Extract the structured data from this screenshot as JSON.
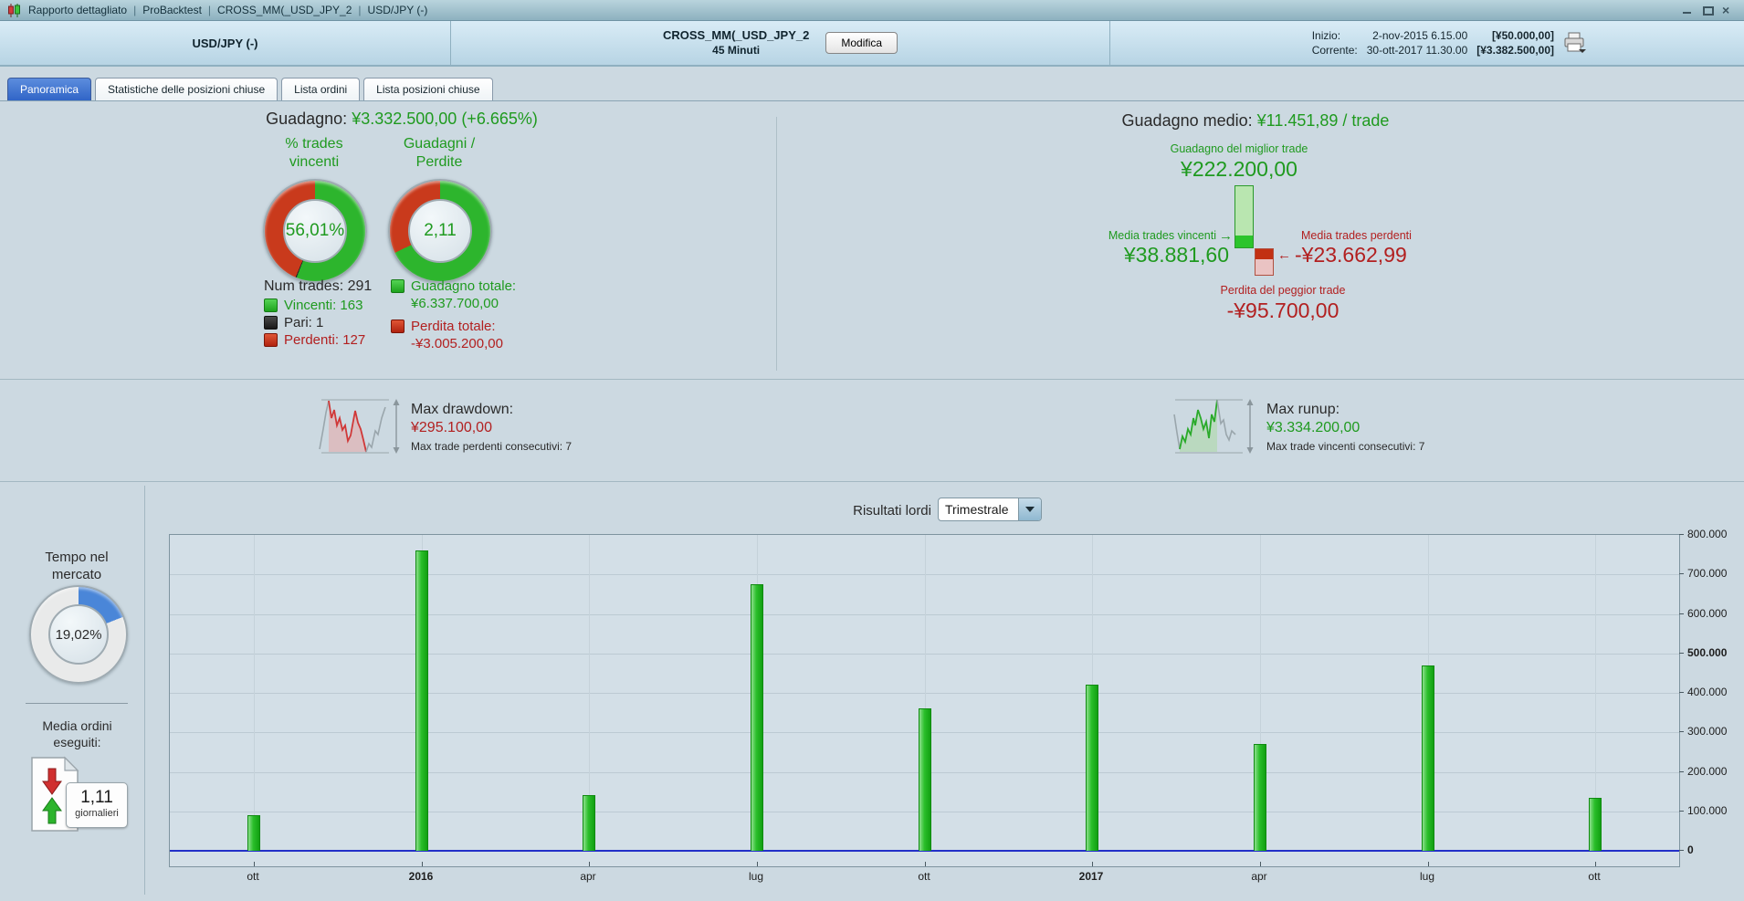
{
  "titlebar": {
    "separator": "|",
    "parts": [
      "Rapporto dettagliato",
      "ProBacktest",
      "CROSS_MM(_USD_JPY_2",
      "USD/JPY (-)"
    ]
  },
  "header": {
    "instrument": "USD/JPY (-)",
    "system_name": "CROSS_MM(_USD_JPY_2",
    "timeframe": "45 Minuti",
    "modify_button": "Modifica",
    "start_label": "Inizio:",
    "start_date": "2-nov-2015 6.15.00",
    "start_value": "[¥50.000,00]",
    "current_label": "Corrente:",
    "current_date": "30-ott-2017 11.30.00",
    "current_value": "[¥3.382.500,00]"
  },
  "tabs": [
    {
      "label": "Panoramica",
      "active": true
    },
    {
      "label": "Statistiche delle posizioni chiuse",
      "active": false
    },
    {
      "label": "Lista ordini",
      "active": false
    },
    {
      "label": "Lista posizioni chiuse",
      "active": false
    }
  ],
  "overview": {
    "gain_label": "Guadagno:",
    "gain_value": "¥3.332.500,00 (+6.665%)",
    "win_donut": {
      "title_line1": "% trades",
      "title_line2": "vincenti",
      "center": "56,01%",
      "segments": [
        {
          "color": "#2db52d",
          "pct": 56.01
        },
        {
          "color": "#262626",
          "pct": 0.34
        },
        {
          "color": "#c93a1c",
          "pct": 43.65
        }
      ]
    },
    "gl_donut": {
      "title_line1": "Guadagni /",
      "title_line2": "Perdite",
      "center": "2,11",
      "segments": [
        {
          "color": "#2db52d",
          "pct": 67.83
        },
        {
          "color": "#c93a1c",
          "pct": 32.17
        }
      ]
    },
    "num_trades": "Num trades: 291",
    "legend": {
      "win": "Vincenti: 163",
      "even": "Pari: 1",
      "loss": "Perdenti: 127"
    },
    "total_gain_label": "Guadagno totale:",
    "total_gain_value": "¥6.337.700,00",
    "total_loss_label": "Perdita totale:",
    "total_loss_value": "-¥3.005.200,00"
  },
  "average": {
    "heading_label": "Guadagno medio:",
    "heading_value": "¥11.451,89 / trade",
    "best_label": "Guadagno del miglior trade",
    "best_value": "¥222.200,00",
    "avg_win_label": "Media trades vincenti",
    "avg_win_value": "¥38.881,60",
    "avg_win_arrow": "→",
    "avg_loss_label": "Media trades perdenti",
    "avg_loss_value": "-¥23.662,99",
    "avg_loss_arrow": "←",
    "worst_label": "Perdita del peggior trade",
    "worst_value": "-¥95.700,00"
  },
  "drawdown": {
    "label": "Max drawdown:",
    "value": "¥295.100,00",
    "note": "Max trade perdenti consecutivi: 7"
  },
  "runup": {
    "label": "Max runup:",
    "value": "¥3.334.200,00",
    "note": "Max trade vincenti consecutivi: 7"
  },
  "bottom": {
    "results_label": "Risultati lordi",
    "period_value": "Trimestrale",
    "time_title_line1": "Tempo nel",
    "time_title_line2": "mercato",
    "time_donut": {
      "center": "19,02%",
      "segments": [
        {
          "color": "#4a86d8",
          "pct": 19.02
        },
        {
          "color": "#e9eaea",
          "pct": 80.98
        }
      ]
    },
    "orders_label_line1": "Media ordini",
    "orders_label_line2": "eseguiti:",
    "orders_value": "1,11",
    "orders_unit": "giornalieri"
  },
  "chart_data": {
    "type": "bar",
    "title": "Risultati lordi",
    "period": "Trimestrale",
    "categories": [
      "ott",
      "2016",
      "apr",
      "lug",
      "ott",
      "2017",
      "apr",
      "lug",
      "ott"
    ],
    "bold_categories": [
      false,
      true,
      false,
      false,
      false,
      true,
      false,
      false,
      false
    ],
    "values": [
      90000,
      760000,
      140000,
      675000,
      360000,
      420000,
      270000,
      470000,
      135000
    ],
    "ylim": [
      0,
      800000
    ],
    "yticks": [
      {
        "label": "800.000",
        "value": 800000,
        "bold": false
      },
      {
        "label": "700.000",
        "value": 700000,
        "bold": false
      },
      {
        "label": "600.000",
        "value": 600000,
        "bold": false
      },
      {
        "label": "500.000",
        "value": 500000,
        "bold": true
      },
      {
        "label": "400.000",
        "value": 400000,
        "bold": false
      },
      {
        "label": "300.000",
        "value": 300000,
        "bold": false
      },
      {
        "label": "200.000",
        "value": 200000,
        "bold": false
      },
      {
        "label": "100.000",
        "value": 100000,
        "bold": false
      },
      {
        "label": "0",
        "value": 0,
        "bold": true
      }
    ],
    "bar_color": "#2abe2a",
    "zero_line_color": "#2230c8",
    "grid": true,
    "axis_side": "right"
  }
}
